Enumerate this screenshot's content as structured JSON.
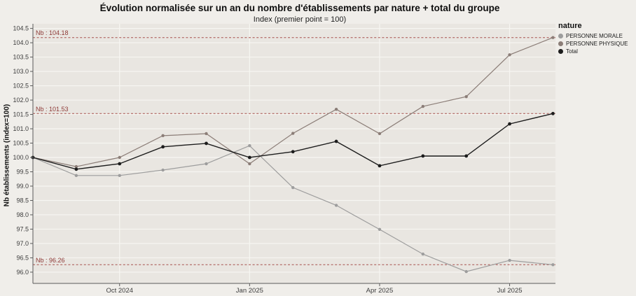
{
  "chart": {
    "title": "Évolution normalisée sur un an du nombre d'établissements par nature + total du groupe",
    "subtitle": "Index (premier point = 100)",
    "y_axis_title": "Nb établissements (index=100)"
  },
  "legend": {
    "title": "nature",
    "items": [
      {
        "label": "PERSONNE MORALE",
        "color": "#9d9d9d"
      },
      {
        "label": "PERSONNE PHYSIQUE",
        "color": "#8b7d77"
      },
      {
        "label": "Total",
        "color": "#1c1c1c"
      }
    ]
  },
  "chart_data": {
    "type": "line",
    "title": "Évolution normalisée sur un an du nombre d'établissements par nature + total du groupe",
    "subtitle": "Index (premier point = 100)",
    "ylabel": "Nb établissements (index=100)",
    "n_points": 13,
    "x_tick_labels": [
      {
        "index": 2,
        "label": "Oct 2024"
      },
      {
        "index": 5,
        "label": "Jan 2025"
      },
      {
        "index": 8,
        "label": "Apr 2025"
      },
      {
        "index": 11,
        "label": "Jul 2025"
      }
    ],
    "ylim": [
      96.0,
      104.5
    ],
    "y_tick_step": 0.5,
    "grid": true,
    "legend_position": "right",
    "series": [
      {
        "name": "PERSONNE MORALE",
        "color": "#9d9d9d",
        "values": [
          100.0,
          99.37,
          99.37,
          99.56,
          99.78,
          100.41,
          98.95,
          98.33,
          97.49,
          96.63,
          96.02,
          96.41,
          96.26
        ]
      },
      {
        "name": "PERSONNE PHYSIQUE",
        "color": "#8b7d77",
        "values": [
          100.0,
          99.68,
          100.0,
          100.76,
          100.83,
          99.78,
          100.84,
          101.68,
          100.83,
          101.78,
          102.12,
          103.58,
          104.18
        ]
      },
      {
        "name": "Total",
        "color": "#1c1c1c",
        "values": [
          100.0,
          99.59,
          99.78,
          100.37,
          100.49,
          100.0,
          100.2,
          100.56,
          99.71,
          100.05,
          100.05,
          101.17,
          101.53
        ]
      }
    ],
    "annotations": [
      {
        "label": "Nb : 104.18",
        "value": 104.18
      },
      {
        "label": "Nb : 101.53",
        "value": 101.53
      },
      {
        "label": "Nb : 96.26",
        "value": 96.26
      }
    ],
    "annotation_line_color": "#a8514d",
    "annotation_text_color": "#8e3a37",
    "panel_color": "#e9e6e1",
    "grid_color": "#f7f6f2",
    "axis_color": "#5a5a5a",
    "tick_label_color": "#3d3d3d"
  }
}
